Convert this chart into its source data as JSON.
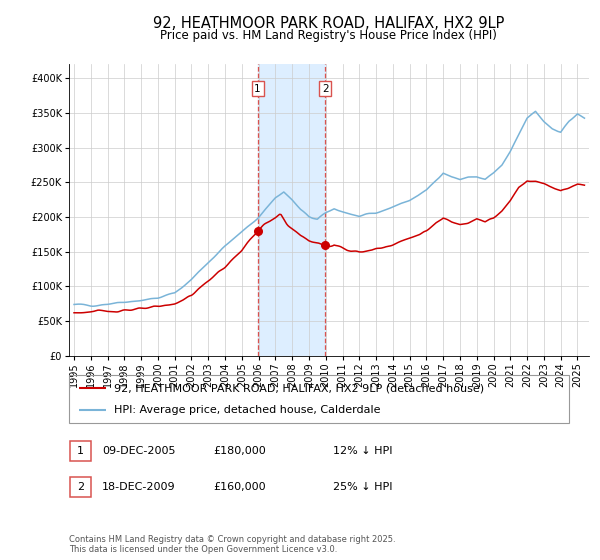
{
  "title": "92, HEATHMOOR PARK ROAD, HALIFAX, HX2 9LP",
  "subtitle": "Price paid vs. HM Land Registry's House Price Index (HPI)",
  "ylim": [
    0,
    420000
  ],
  "yticks": [
    0,
    50000,
    100000,
    150000,
    200000,
    250000,
    300000,
    350000,
    400000
  ],
  "ytick_labels": [
    "£0",
    "£50K",
    "£100K",
    "£150K",
    "£200K",
    "£250K",
    "£300K",
    "£350K",
    "£400K"
  ],
  "xlim_start": 1994.7,
  "xlim_end": 2025.7,
  "xticks": [
    1995,
    1996,
    1997,
    1998,
    1999,
    2000,
    2001,
    2002,
    2003,
    2004,
    2005,
    2006,
    2007,
    2008,
    2009,
    2010,
    2011,
    2012,
    2013,
    2014,
    2015,
    2016,
    2017,
    2018,
    2019,
    2020,
    2021,
    2022,
    2023,
    2024,
    2025
  ],
  "hpi_color": "#7ab4d8",
  "price_color": "#cc0000",
  "marker_color": "#cc0000",
  "sale1_date": 2005.94,
  "sale1_price": 180000,
  "sale2_date": 2009.96,
  "sale2_price": 160000,
  "vline_color": "#d9534f",
  "shade_color": "#ddeeff",
  "legend_label_red": "92, HEATHMOOR PARK ROAD, HALIFAX, HX2 9LP (detached house)",
  "legend_label_blue": "HPI: Average price, detached house, Calderdale",
  "table_row1": [
    "1",
    "09-DEC-2005",
    "£180,000",
    "12% ↓ HPI"
  ],
  "table_row2": [
    "2",
    "18-DEC-2009",
    "£160,000",
    "25% ↓ HPI"
  ],
  "footnote": "Contains HM Land Registry data © Crown copyright and database right 2025.\nThis data is licensed under the Open Government Licence v3.0.",
  "grid_color": "#cccccc",
  "title_fontsize": 10.5,
  "subtitle_fontsize": 8.5,
  "tick_fontsize": 7,
  "label_fontsize": 8,
  "legend_fontsize": 8,
  "footnote_fontsize": 6,
  "hpi_anchors_t": [
    1995.0,
    1996.0,
    1997.0,
    1998.0,
    1999.0,
    2000.0,
    2001.0,
    2002.0,
    2003.0,
    2004.0,
    2005.0,
    2006.0,
    2007.0,
    2007.5,
    2008.0,
    2008.5,
    2009.0,
    2009.5,
    2010.0,
    2010.5,
    2011.0,
    2011.5,
    2012.0,
    2012.5,
    2013.0,
    2013.5,
    2014.0,
    2015.0,
    2016.0,
    2017.0,
    2017.5,
    2018.0,
    2018.5,
    2019.0,
    2019.5,
    2020.0,
    2020.5,
    2021.0,
    2021.5,
    2022.0,
    2022.5,
    2023.0,
    2023.5,
    2024.0,
    2024.5,
    2025.0,
    2025.4
  ],
  "hpi_anchors_v": [
    73000,
    73000,
    75000,
    78000,
    80000,
    83000,
    90000,
    110000,
    135000,
    158000,
    178000,
    200000,
    228000,
    236000,
    224000,
    210000,
    200000,
    196000,
    205000,
    212000,
    208000,
    204000,
    200000,
    202000,
    205000,
    210000,
    215000,
    224000,
    238000,
    265000,
    258000,
    254000,
    257000,
    258000,
    254000,
    263000,
    274000,
    293000,
    318000,
    342000,
    352000,
    338000,
    328000,
    323000,
    338000,
    348000,
    342000
  ],
  "price_anchors_t": [
    1995.0,
    1996.0,
    1997.0,
    1998.0,
    1999.0,
    2000.0,
    2001.0,
    2002.0,
    2003.0,
    2004.0,
    2005.0,
    2005.94,
    2006.3,
    2007.0,
    2007.3,
    2007.7,
    2008.0,
    2008.5,
    2009.0,
    2009.8,
    2009.96,
    2010.2,
    2010.5,
    2011.0,
    2011.5,
    2012.0,
    2012.5,
    2013.0,
    2013.5,
    2014.0,
    2015.0,
    2016.0,
    2017.0,
    2017.5,
    2018.0,
    2018.5,
    2019.0,
    2019.5,
    2020.0,
    2020.5,
    2021.0,
    2021.5,
    2022.0,
    2022.5,
    2023.0,
    2023.5,
    2024.0,
    2024.5,
    2025.0,
    2025.4
  ],
  "price_anchors_v": [
    62000,
    63000,
    64000,
    66000,
    67000,
    70000,
    75000,
    87000,
    108000,
    128000,
    152000,
    180000,
    188000,
    198000,
    204000,
    190000,
    183000,
    173000,
    166000,
    160000,
    160000,
    157000,
    161000,
    156000,
    151000,
    149000,
    151000,
    154000,
    157000,
    161000,
    169000,
    180000,
    198000,
    193000,
    190000,
    193000,
    198000,
    193000,
    198000,
    208000,
    223000,
    243000,
    253000,
    251000,
    248000,
    243000,
    238000,
    243000,
    248000,
    246000
  ]
}
